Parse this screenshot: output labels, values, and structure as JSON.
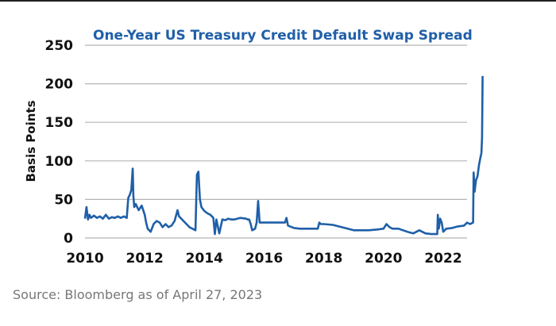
{
  "chart_data": {
    "type": "line",
    "title": "One-Year US Treasury Credit Default Swap Spread",
    "xlabel": "",
    "ylabel": "Basis Points",
    "ylim": [
      0,
      250
    ],
    "xlim": [
      2010,
      2023.6
    ],
    "yticks": [
      0,
      50,
      100,
      150,
      200,
      250
    ],
    "xticks": [
      2010,
      2012,
      2014,
      2016,
      2018,
      2020,
      2022
    ],
    "grid": true,
    "legend": "none",
    "line_color": "#1f5fa8",
    "series": [
      {
        "name": "One-Year US Treasury CDS Spread",
        "x": [
          2010.0,
          2010.05,
          2010.1,
          2010.15,
          2010.2,
          2010.3,
          2010.4,
          2010.5,
          2010.6,
          2010.7,
          2010.8,
          2010.9,
          2011.0,
          2011.1,
          2011.2,
          2011.3,
          2011.4,
          2011.45,
          2011.5,
          2011.55,
          2011.6,
          2011.62,
          2011.65,
          2011.7,
          2011.8,
          2011.9,
          2012.0,
          2012.05,
          2012.1,
          2012.2,
          2012.3,
          2012.4,
          2012.5,
          2012.6,
          2012.7,
          2012.8,
          2012.9,
          2013.0,
          2013.1,
          2013.15,
          2013.2,
          2013.3,
          2013.4,
          2013.5,
          2013.6,
          2013.7,
          2013.75,
          2013.8,
          2013.85,
          2013.9,
          2014.0,
          2014.1,
          2014.2,
          2014.3,
          2014.35,
          2014.4,
          2014.5,
          2014.6,
          2014.7,
          2014.8,
          2014.9,
          2015.0,
          2015.2,
          2015.4,
          2015.45,
          2015.5,
          2015.55,
          2015.6,
          2015.7,
          2015.75,
          2015.8,
          2015.85,
          2016.0,
          2016.2,
          2016.5,
          2016.7,
          2016.75,
          2016.8,
          2017.0,
          2017.2,
          2017.5,
          2017.8,
          2017.85,
          2017.9,
          2018.0,
          2018.3,
          2018.6,
          2019.0,
          2019.3,
          2019.5,
          2019.8,
          2020.0,
          2020.1,
          2020.2,
          2020.3,
          2020.5,
          2020.8,
          2021.0,
          2021.2,
          2021.4,
          2021.6,
          2021.8,
          2021.82,
          2021.85,
          2021.9,
          2021.95,
          2022.0,
          2022.05,
          2022.1,
          2022.3,
          2022.5,
          2022.7,
          2022.8,
          2022.9,
          2023.0,
          2023.02,
          2023.05,
          2023.1,
          2023.15,
          2023.2,
          2023.25,
          2023.28,
          2023.3,
          2023.32
        ],
        "y": [
          25,
          40,
          24,
          30,
          26,
          29,
          26,
          28,
          25,
          30,
          25,
          27,
          26,
          28,
          26,
          28,
          26,
          52,
          56,
          62,
          90,
          55,
          40,
          44,
          36,
          42,
          30,
          20,
          12,
          8,
          18,
          22,
          20,
          14,
          18,
          14,
          16,
          22,
          36,
          28,
          26,
          22,
          18,
          14,
          12,
          10,
          82,
          86,
          50,
          40,
          35,
          32,
          30,
          26,
          5,
          24,
          6,
          24,
          23,
          25,
          24,
          24,
          26,
          25,
          24,
          24,
          18,
          10,
          12,
          20,
          48,
          20,
          20,
          20,
          20,
          20,
          26,
          16,
          13,
          12,
          12,
          12,
          20,
          18,
          18,
          17,
          14,
          10,
          10,
          10,
          11,
          12,
          18,
          14,
          12,
          12,
          8,
          6,
          10,
          6,
          5,
          5,
          30,
          12,
          25,
          20,
          8,
          10,
          12,
          13,
          15,
          16,
          20,
          18,
          20,
          85,
          60,
          75,
          80,
          95,
          105,
          110,
          130,
          210
        ]
      }
    ]
  },
  "source_note": "Source: Bloomberg as of April 27, 2023"
}
